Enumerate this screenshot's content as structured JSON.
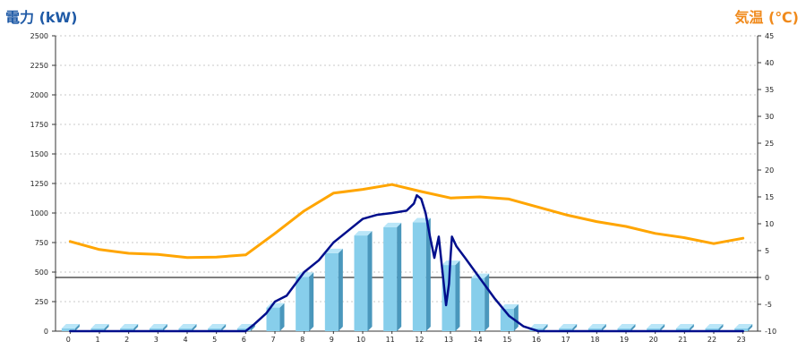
{
  "left_axis_title": "電力 (kW)",
  "right_axis_title": "気温 (℃)",
  "colors": {
    "bar_face": "#87ceeb",
    "bar_side": "#4a97bc",
    "bar_top": "#b9e6f8",
    "power_line": "#000e8c",
    "temp_line": "#ffa500",
    "grid": "#c8c8c8",
    "axis": "#333333"
  },
  "chart_data": {
    "type": "bar+line",
    "x": [
      0,
      1,
      2,
      3,
      4,
      5,
      6,
      7,
      8,
      9,
      10,
      11,
      12,
      13,
      14,
      15,
      16,
      17,
      18,
      19,
      20,
      21,
      22,
      23
    ],
    "x_tick_labels": [
      "0",
      "1",
      "2",
      "3",
      "4",
      "5",
      "6",
      "7",
      "8",
      "9",
      "10",
      "11",
      "12",
      "13",
      "14",
      "15",
      "16",
      "17",
      "18",
      "19",
      "20",
      "21",
      "22",
      "23"
    ],
    "left_axis": {
      "label": "電力 (kW)",
      "min": 0,
      "max": 2500,
      "step": 250,
      "ticks": [
        "0",
        "250",
        "500",
        "750",
        "1000",
        "1250",
        "1500",
        "1750",
        "2000",
        "2250",
        "2500"
      ]
    },
    "right_axis": {
      "label": "気温 (℃)",
      "min": -10,
      "max": 45,
      "step": 5,
      "ticks": [
        "-10",
        "-5",
        "0",
        "5",
        "10",
        "15",
        "20",
        "25",
        "30",
        "35",
        "40",
        "45"
      ]
    },
    "grid": true,
    "series": [
      {
        "type": "bar",
        "axis": "left",
        "values": [
          0,
          0,
          0,
          0,
          0,
          0,
          0,
          200,
          460,
          660,
          810,
          880,
          920,
          560,
          450,
          190,
          0,
          0,
          0,
          0,
          0,
          0,
          0,
          0
        ]
      },
      {
        "type": "line",
        "axis": "left",
        "points": [
          [
            0,
            0
          ],
          [
            1,
            0
          ],
          [
            2,
            0
          ],
          [
            3,
            0
          ],
          [
            4,
            0
          ],
          [
            5,
            0
          ],
          [
            6,
            0
          ],
          [
            6.3,
            60
          ],
          [
            6.7,
            150
          ],
          [
            7,
            250
          ],
          [
            7.4,
            300
          ],
          [
            8,
            500
          ],
          [
            8.5,
            600
          ],
          [
            9,
            750
          ],
          [
            9.5,
            850
          ],
          [
            10,
            950
          ],
          [
            10.5,
            985
          ],
          [
            11,
            1000
          ],
          [
            11.5,
            1020
          ],
          [
            11.75,
            1080
          ],
          [
            11.85,
            1150
          ],
          [
            12,
            1120
          ],
          [
            12.15,
            1000
          ],
          [
            12.3,
            800
          ],
          [
            12.45,
            620
          ],
          [
            12.6,
            800
          ],
          [
            12.75,
            450
          ],
          [
            12.85,
            220
          ],
          [
            12.95,
            400
          ],
          [
            13,
            620
          ],
          [
            13.05,
            800
          ],
          [
            13.2,
            720
          ],
          [
            13.5,
            620
          ],
          [
            14,
            450
          ],
          [
            14.5,
            280
          ],
          [
            15,
            130
          ],
          [
            15.5,
            40
          ],
          [
            16,
            0
          ],
          [
            17,
            0
          ],
          [
            18,
            0
          ],
          [
            19,
            0
          ],
          [
            20,
            0
          ],
          [
            21,
            0
          ],
          [
            22,
            0
          ],
          [
            23,
            0
          ]
        ]
      },
      {
        "type": "line",
        "axis": "right",
        "values": [
          6.7,
          5.2,
          4.5,
          4.3,
          3.7,
          3.8,
          4.2,
          8.2,
          12.4,
          15.7,
          16.4,
          17.3,
          16,
          14.8,
          15,
          14.6,
          13.1,
          11.6,
          10.4,
          9.5,
          8.2,
          7.4,
          6.3,
          7.3
        ]
      }
    ]
  }
}
